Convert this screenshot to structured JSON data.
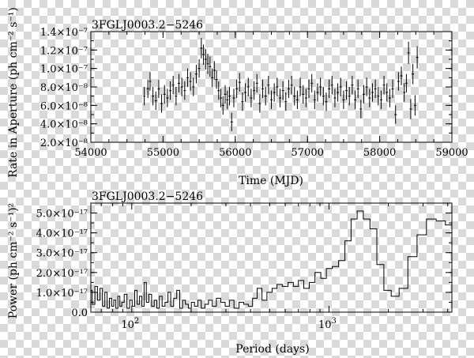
{
  "chart_data": [
    {
      "type": "scatter",
      "title": "3FGLJ0003.2−5246",
      "xlabel": "Time (MJD)",
      "ylabel": "Rate in Aperture (ph cm⁻² s⁻¹)",
      "xlim": [
        54000,
        59000
      ],
      "ylim": [
        2e-08,
        1.4e-07
      ],
      "x_ticks": [
        {
          "value": 54000,
          "label": "54000"
        },
        {
          "value": 55000,
          "label": "55000"
        },
        {
          "value": 56000,
          "label": "56000"
        },
        {
          "value": 57000,
          "label": "57000"
        },
        {
          "value": 58000,
          "label": "58000"
        },
        {
          "value": 59000,
          "label": "59000"
        }
      ],
      "y_ticks": [
        {
          "value": 2e-08,
          "label": "2.0×10⁻⁸"
        },
        {
          "value": 4e-08,
          "label": "4.0×10⁻⁸"
        },
        {
          "value": 6e-08,
          "label": "6.0×10⁻⁸"
        },
        {
          "value": 8e-08,
          "label": "8.0×10⁻⁸"
        },
        {
          "value": 1e-07,
          "label": "1.0×10⁻⁷"
        },
        {
          "value": 1.2e-07,
          "label": "1.2×10⁻⁷"
        },
        {
          "value": 1.4e-07,
          "label": "1.4×10⁻⁷"
        }
      ],
      "series": [
        {
          "x": [
            54740,
            54790,
            54820,
            54860,
            54900,
            54940,
            54980,
            55020,
            55060,
            55100,
            55140,
            55180,
            55220,
            55260,
            55300,
            55340,
            55380,
            55420,
            55460,
            55500,
            55530,
            55560,
            55590,
            55620,
            55650,
            55680,
            55710,
            55740,
            55770,
            55800,
            55830,
            55860,
            55890,
            55920,
            55950,
            55980,
            56020,
            56060,
            56100,
            56140,
            56180,
            56220,
            56260,
            56300,
            56340,
            56380,
            56420,
            56460,
            56500,
            56540,
            56580,
            56620,
            56660,
            56700,
            56740,
            56780,
            56820,
            56860,
            56900,
            56940,
            56980,
            57020,
            57060,
            57100,
            57140,
            57180,
            57220,
            57260,
            57300,
            57340,
            57380,
            57420,
            57460,
            57500,
            57540,
            57580,
            57620,
            57660,
            57700,
            57740,
            57780,
            57820,
            57860,
            57900,
            57940,
            57980,
            58020,
            58060,
            58100,
            58140,
            58180,
            58220,
            58260,
            58300,
            58340,
            58370,
            58400,
            58430,
            58460,
            58490,
            58520
          ],
          "y": [
            7e-08,
            7.8e-08,
            8.6e-08,
            7e-08,
            6.5e-08,
            7.8e-08,
            6.2e-08,
            7.2e-08,
            6.8e-08,
            7.6e-08,
            8.2e-08,
            7e-08,
            8.4e-08,
            8e-08,
            7.6e-08,
            9e-08,
            8.6e-08,
            8e-08,
            9.4e-08,
            1e-07,
            1.22e-07,
            1.15e-07,
            1.1e-07,
            1.05e-07,
            1.02e-07,
            9e-08,
            9.8e-08,
            8.8e-08,
            7.6e-08,
            6.8e-08,
            6e-08,
            7.2e-08,
            6.6e-08,
            7e-08,
            4.2e-08,
            6.8e-08,
            7.8e-08,
            8.5e-08,
            6.4e-08,
            7.4e-08,
            8e-08,
            6.8e-08,
            7.6e-08,
            8.4e-08,
            6.2e-08,
            7.8e-08,
            7e-08,
            8.2e-08,
            6.6e-08,
            7.4e-08,
            8e-08,
            6.8e-08,
            7.6e-08,
            6.4e-08,
            7.8e-08,
            8.2e-08,
            7e-08,
            6.6e-08,
            8e-08,
            7.2e-08,
            6.8e-08,
            7.8e-08,
            8.4e-08,
            6.6e-08,
            7.4e-08,
            8e-08,
            7e-08,
            6.4e-08,
            7.8e-08,
            8.2e-08,
            6.8e-08,
            7.4e-08,
            8e-08,
            6.6e-08,
            7.6e-08,
            7e-08,
            8.2e-08,
            6.6e-08,
            7.8e-08,
            5.6e-08,
            7.2e-08,
            8e-08,
            6.8e-08,
            7.4e-08,
            7.8e-08,
            7e-08,
            6.6e-08,
            8.2e-08,
            7.4e-08,
            6.8e-08,
            7.8e-08,
            5e-08,
            8.6e-08,
            9.2e-08,
            7.4e-08,
            8.4e-08,
            1.17e-07,
            5.6e-08,
            9.4e-08,
            6e-08,
            1.12e-07
          ],
          "yerr": [
            1e-08,
            1e-08,
            1e-08,
            1e-08,
            1e-08,
            1e-08,
            1e-08,
            1e-08,
            1e-08,
            1e-08,
            1e-08,
            1e-08,
            1e-08,
            1e-08,
            1e-08,
            1e-08,
            1e-08,
            1e-08,
            1e-08,
            1e-08,
            1.1e-08,
            1.1e-08,
            1.1e-08,
            1.1e-08,
            1.1e-08,
            1e-08,
            1e-08,
            1e-08,
            1e-08,
            1e-08,
            1e-08,
            1e-08,
            1e-08,
            1e-08,
            1e-08,
            1e-08,
            1e-08,
            1e-08,
            1e-08,
            1e-08,
            1e-08,
            1e-08,
            1e-08,
            1e-08,
            1e-08,
            1e-08,
            1e-08,
            1e-08,
            1e-08,
            1e-08,
            1e-08,
            1e-08,
            1e-08,
            1e-08,
            1e-08,
            1e-08,
            1e-08,
            1e-08,
            1e-08,
            1e-08,
            1e-08,
            1e-08,
            1e-08,
            1e-08,
            1e-08,
            1e-08,
            1e-08,
            1e-08,
            1e-08,
            1e-08,
            1e-08,
            1e-08,
            1e-08,
            1e-08,
            1e-08,
            1e-08,
            1e-08,
            1e-08,
            1e-08,
            1e-08,
            1e-08,
            1e-08,
            1e-08,
            1e-08,
            1e-08,
            1e-08,
            1e-08,
            1e-08,
            1e-08,
            1e-08,
            1e-08,
            1e-08,
            1e-08,
            1e-08,
            1e-08,
            1e-08,
            1.2e-08,
            1.1e-08,
            1.1e-08,
            1.1e-08,
            1.2e-08
          ]
        }
      ]
    },
    {
      "type": "line",
      "title": "3FGLJ0003.2−5246",
      "xlabel": "Period (days)",
      "ylabel": "Power (ph cm⁻² s⁻¹)²",
      "x_scale": "log",
      "xlim": [
        62,
        4200
      ],
      "ylim": [
        0,
        5.5e-17
      ],
      "x_ticks": [
        {
          "value": 100,
          "base": "10",
          "exponent": "2"
        },
        {
          "value": 1000,
          "base": "10",
          "exponent": "3"
        }
      ],
      "y_ticks": [
        {
          "value": 0,
          "label": "0.0"
        },
        {
          "value": 1e-17,
          "label": "1.0×10⁻¹⁷"
        },
        {
          "value": 2e-17,
          "label": "2.0×10⁻¹⁷"
        },
        {
          "value": 3e-17,
          "label": "3.0×10⁻¹⁷"
        },
        {
          "value": 4e-17,
          "label": "4.0×10⁻¹⁷"
        },
        {
          "value": 5e-17,
          "label": "5.0×10⁻¹⁷"
        }
      ],
      "series": [
        {
          "x": [
            62,
            64,
            66,
            68,
            70,
            72,
            74,
            76,
            78,
            80,
            82,
            84,
            86,
            88,
            90,
            93,
            96,
            99,
            102,
            105,
            108,
            111,
            114,
            117,
            120,
            124,
            128,
            132,
            136,
            140,
            145,
            150,
            155,
            160,
            166,
            172,
            178,
            184,
            190,
            197,
            204,
            212,
            220,
            230,
            240,
            250,
            262,
            275,
            290,
            305,
            320,
            340,
            360,
            380,
            400,
            420,
            445,
            470,
            500,
            530,
            560,
            600,
            640,
            680,
            720,
            770,
            820,
            880,
            940,
            1000,
            1080,
            1160,
            1250,
            1340,
            1440,
            1550,
            1680,
            1820,
            1980,
            2160,
            2380,
            2650,
            2950,
            3300,
            3700,
            4100
          ],
          "y": [
            1.1e-17,
            4e-18,
            1.3e-17,
            6e-18,
            1.2e-17,
            3e-18,
            1e-17,
            2e-18,
            7e-18,
            3e-18,
            6e-18,
            2e-18,
            8e-18,
            3e-18,
            5e-18,
            9e-18,
            2e-18,
            6e-18,
            3e-18,
            1.1e-17,
            4e-18,
            8e-18,
            3e-18,
            1.5e-17,
            5e-18,
            9e-18,
            3e-18,
            6e-18,
            2e-18,
            8e-18,
            3e-18,
            5e-18,
            1e-17,
            3e-18,
            7e-18,
            1.1e-17,
            2e-18,
            6e-18,
            4e-18,
            2e-18,
            5e-18,
            3e-18,
            6e-18,
            2e-18,
            4e-18,
            6e-18,
            3e-18,
            7e-18,
            5e-18,
            3e-18,
            6e-18,
            2e-18,
            5e-18,
            4e-18,
            3e-18,
            7e-18,
            1.2e-17,
            6e-18,
            1e-17,
            1.2e-17,
            1.4e-17,
            1.3e-17,
            1.5e-17,
            1.3e-17,
            1.6e-17,
            1.2e-17,
            1.5e-17,
            2e-17,
            1.7e-17,
            2.2e-17,
            2.3e-17,
            2.6e-17,
            3.6e-17,
            4.7e-17,
            5.1e-17,
            4.7e-17,
            4.2e-17,
            2.4e-17,
            1.1e-17,
            8e-18,
            1.2e-17,
            2.8e-17,
            3.9e-17,
            4.7e-17,
            4.6e-17,
            4.4e-17
          ]
        }
      ]
    }
  ]
}
